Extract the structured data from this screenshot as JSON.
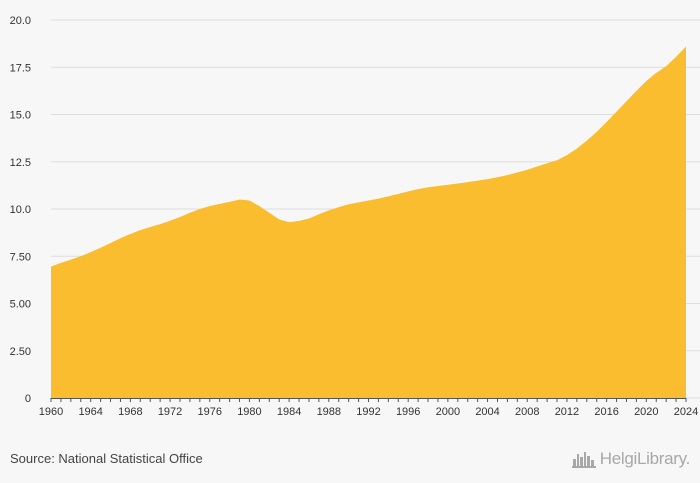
{
  "chart_data": {
    "type": "area",
    "title": "",
    "xlabel": "",
    "ylabel": "",
    "grid": true,
    "color": "#f9bd2f",
    "x": [
      1960,
      1961,
      1962,
      1963,
      1964,
      1965,
      1966,
      1967,
      1968,
      1969,
      1970,
      1971,
      1972,
      1973,
      1974,
      1975,
      1976,
      1977,
      1978,
      1979,
      1980,
      1981,
      1982,
      1983,
      1984,
      1985,
      1986,
      1987,
      1988,
      1989,
      1990,
      1991,
      1992,
      1993,
      1994,
      1995,
      1996,
      1997,
      1998,
      1999,
      2000,
      2001,
      2002,
      2003,
      2004,
      2005,
      2006,
      2007,
      2008,
      2009,
      2010,
      2011,
      2012,
      2013,
      2014,
      2015,
      2016,
      2017,
      2018,
      2019,
      2020,
      2021,
      2022,
      2023,
      2024
    ],
    "values": [
      6.95,
      7.15,
      7.32,
      7.5,
      7.72,
      7.95,
      8.2,
      8.45,
      8.68,
      8.88,
      9.05,
      9.2,
      9.38,
      9.58,
      9.8,
      10.0,
      10.15,
      10.27,
      10.38,
      10.5,
      10.45,
      10.15,
      9.8,
      9.45,
      9.3,
      9.37,
      9.5,
      9.72,
      9.93,
      10.1,
      10.25,
      10.35,
      10.45,
      10.55,
      10.67,
      10.8,
      10.93,
      11.05,
      11.15,
      11.22,
      11.28,
      11.35,
      11.42,
      11.5,
      11.58,
      11.68,
      11.8,
      11.93,
      12.08,
      12.25,
      12.42,
      12.58,
      12.85,
      13.2,
      13.62,
      14.08,
      14.6,
      15.15,
      15.7,
      16.25,
      16.77,
      17.2,
      17.55,
      18.05,
      18.6
    ],
    "ylim": [
      0,
      20
    ],
    "yticks": [
      "0",
      "2.50",
      "5.00",
      "7.50",
      "10.0",
      "12.5",
      "15.0",
      "17.5",
      "20.0"
    ],
    "ytick_values": [
      0,
      2.5,
      5,
      7.5,
      10,
      12.5,
      15,
      17.5,
      20
    ],
    "xticks": [
      "1960",
      "1964",
      "1968",
      "1972",
      "1976",
      "1980",
      "1984",
      "1988",
      "1992",
      "1996",
      "2000",
      "2004",
      "2008",
      "2012",
      "2016",
      "2020",
      "2024"
    ],
    "xtick_values": [
      1960,
      1964,
      1968,
      1972,
      1976,
      1980,
      1984,
      1988,
      1992,
      1996,
      2000,
      2004,
      2008,
      2012,
      2016,
      2020,
      2024
    ]
  },
  "footer": {
    "source": "Source: National Statistical Office",
    "brand": "HelgiLibrary."
  },
  "colors": {
    "area": "#f9bd2f",
    "grid": "#dddddd",
    "brand": "#a8a8a8"
  },
  "icons": {
    "logo": "city-skyline-icon"
  }
}
